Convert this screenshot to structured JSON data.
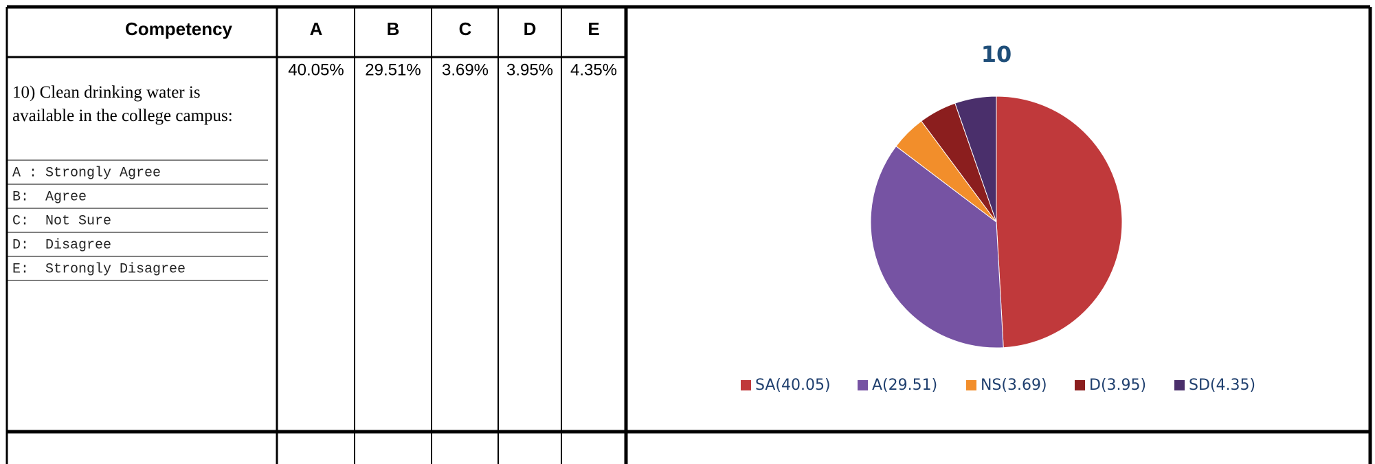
{
  "table": {
    "header": [
      "Competency",
      "A",
      "B",
      "C",
      "D",
      "E"
    ],
    "question": "10) Clean drinking water is available in the college campus:",
    "options": [
      "A : Strongly Agree",
      "B:  Agree",
      "C:  Not Sure",
      "D:  Disagree",
      "E:  Strongly Disagree"
    ],
    "percentages": [
      "40.05%",
      "29.51%",
      "3.69%",
      "3.95%",
      "4.35%"
    ]
  },
  "chart_data": {
    "type": "pie",
    "title": "10",
    "categories": [
      "SA(40.05)",
      "A(29.51)",
      "NS(3.69)",
      "D(3.95)",
      "SD(4.35)"
    ],
    "values": [
      40.05,
      29.51,
      3.69,
      3.95,
      4.35
    ],
    "colors": [
      "#c0393b",
      "#7653a3",
      "#f28e2b",
      "#8b1e1e",
      "#4a2f6b"
    ],
    "legend": "bottom"
  }
}
